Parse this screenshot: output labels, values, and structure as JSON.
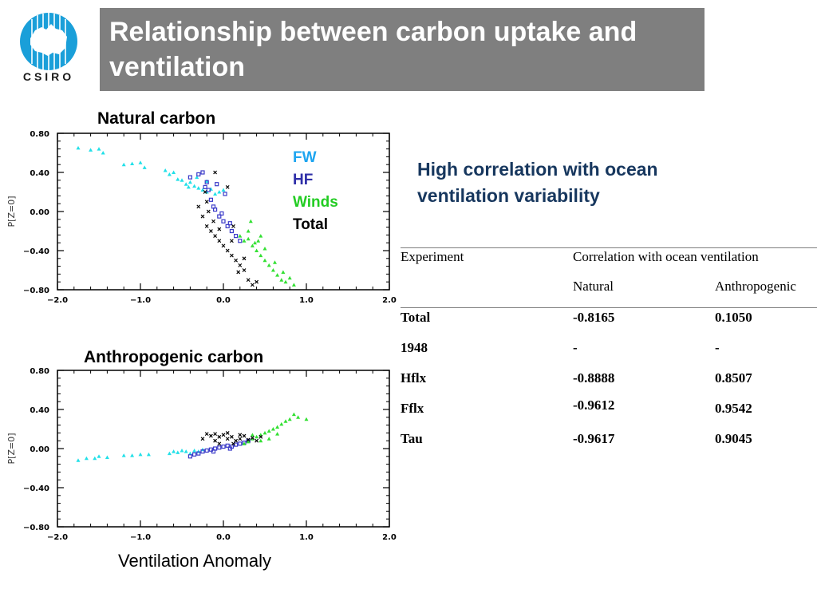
{
  "header": {
    "logo_text": "CSIRO",
    "title": "Relationship between carbon uptake and ventilation"
  },
  "legend": [
    {
      "label": "FW",
      "color": "#1ea5f0"
    },
    {
      "label": "HF",
      "color": "#2f2fa8"
    },
    {
      "label": "Winds",
      "color": "#22cc22"
    },
    {
      "label": "Total",
      "color": "#000000"
    }
  ],
  "headline": "High correlation with ocean ventilation variability",
  "x_caption": "Ventilation Anomaly",
  "chart_data": [
    {
      "type": "scatter",
      "title": "Natural carbon",
      "ylabel": "P[Z=0]",
      "xlim": [
        -2.0,
        2.0
      ],
      "ylim": [
        -0.8,
        0.8
      ],
      "xticks": [
        "−2.0",
        "−1.0",
        "0.0",
        "1.0",
        "2.0"
      ],
      "yticks": [
        "0.80",
        "0.40",
        "0.00",
        "−0.40",
        "−0.80"
      ],
      "series": [
        {
          "name": "FW",
          "color": "#22e0e8",
          "marker": "triangle",
          "points": [
            [
              -1.75,
              0.65
            ],
            [
              -1.6,
              0.63
            ],
            [
              -1.5,
              0.64
            ],
            [
              -1.45,
              0.6
            ],
            [
              -1.2,
              0.48
            ],
            [
              -1.1,
              0.49
            ],
            [
              -1.0,
              0.5
            ],
            [
              -0.95,
              0.45
            ],
            [
              -0.7,
              0.42
            ],
            [
              -0.65,
              0.38
            ],
            [
              -0.6,
              0.4
            ],
            [
              -0.55,
              0.33
            ],
            [
              -0.5,
              0.32
            ],
            [
              -0.45,
              0.28
            ],
            [
              -0.4,
              0.3
            ],
            [
              -0.35,
              0.26
            ],
            [
              -0.3,
              0.24
            ],
            [
              -0.25,
              0.22
            ],
            [
              -0.2,
              0.2
            ],
            [
              -0.15,
              0.23
            ],
            [
              -0.1,
              0.18
            ],
            [
              -0.05,
              0.2
            ],
            [
              0.0,
              0.22
            ],
            [
              -0.32,
              0.35
            ],
            [
              -0.42,
              0.25
            ],
            [
              -0.2,
              0.31
            ]
          ]
        },
        {
          "name": "HF",
          "color": "#3a3ac8",
          "marker": "square",
          "points": [
            [
              -0.4,
              0.35
            ],
            [
              -0.3,
              0.38
            ],
            [
              -0.25,
              0.4
            ],
            [
              -0.2,
              0.3
            ],
            [
              -0.18,
              0.22
            ],
            [
              -0.15,
              0.12
            ],
            [
              -0.12,
              0.05
            ],
            [
              -0.1,
              0.02
            ],
            [
              -0.05,
              -0.05
            ],
            [
              0.0,
              -0.1
            ],
            [
              0.05,
              -0.15
            ],
            [
              0.1,
              -0.2
            ],
            [
              0.15,
              -0.25
            ],
            [
              0.2,
              -0.3
            ],
            [
              -0.08,
              0.28
            ],
            [
              0.02,
              0.18
            ],
            [
              -0.02,
              -0.02
            ],
            [
              0.08,
              -0.12
            ],
            [
              -0.22,
              0.25
            ]
          ]
        },
        {
          "name": "Winds",
          "color": "#33e033",
          "marker": "triangle",
          "points": [
            [
              0.2,
              -0.25
            ],
            [
              0.25,
              -0.3
            ],
            [
              0.3,
              -0.28
            ],
            [
              0.35,
              -0.35
            ],
            [
              0.4,
              -0.4
            ],
            [
              0.45,
              -0.45
            ],
            [
              0.5,
              -0.5
            ],
            [
              0.55,
              -0.55
            ],
            [
              0.6,
              -0.6
            ],
            [
              0.65,
              -0.65
            ],
            [
              0.7,
              -0.7
            ],
            [
              0.75,
              -0.72
            ],
            [
              0.8,
              -0.68
            ],
            [
              0.85,
              -0.75
            ],
            [
              0.42,
              -0.3
            ],
            [
              0.3,
              -0.2
            ],
            [
              0.38,
              -0.32
            ],
            [
              0.5,
              -0.38
            ],
            [
              0.62,
              -0.52
            ],
            [
              0.72,
              -0.62
            ],
            [
              0.33,
              -0.1
            ],
            [
              0.45,
              -0.25
            ]
          ]
        },
        {
          "name": "Total",
          "color": "#000000",
          "marker": "cross",
          "points": [
            [
              -0.2,
              0.1
            ],
            [
              -0.25,
              -0.05
            ],
            [
              -0.2,
              -0.15
            ],
            [
              -0.15,
              -0.2
            ],
            [
              -0.1,
              -0.25
            ],
            [
              -0.05,
              -0.3
            ],
            [
              0.0,
              -0.35
            ],
            [
              0.05,
              -0.4
            ],
            [
              0.1,
              -0.45
            ],
            [
              0.15,
              -0.5
            ],
            [
              0.2,
              -0.55
            ],
            [
              0.25,
              -0.6
            ],
            [
              0.3,
              -0.7
            ],
            [
              0.35,
              -0.75
            ],
            [
              0.4,
              -0.72
            ],
            [
              -0.18,
              0.0
            ],
            [
              -0.12,
              -0.1
            ],
            [
              -0.05,
              -0.18
            ],
            [
              0.1,
              -0.3
            ],
            [
              0.25,
              -0.48
            ],
            [
              0.18,
              -0.62
            ],
            [
              -0.3,
              0.05
            ],
            [
              -0.22,
              0.2
            ],
            [
              -0.1,
              0.4
            ],
            [
              0.05,
              0.25
            ],
            [
              0.12,
              -0.15
            ]
          ]
        }
      ]
    },
    {
      "type": "scatter",
      "title": "Anthropogenic carbon",
      "ylabel": "P[Z=0]",
      "xlim": [
        -2.0,
        2.0
      ],
      "ylim": [
        -0.8,
        0.8
      ],
      "xticks": [
        "−2.0",
        "−1.0",
        "0.0",
        "1.0",
        "2.0"
      ],
      "yticks": [
        "0.80",
        "0.40",
        "0.00",
        "−0.40",
        "−0.80"
      ],
      "series": [
        {
          "name": "FW",
          "color": "#22e0e8",
          "marker": "triangle",
          "points": [
            [
              -1.75,
              -0.12
            ],
            [
              -1.65,
              -0.1
            ],
            [
              -1.55,
              -0.1
            ],
            [
              -1.5,
              -0.08
            ],
            [
              -1.4,
              -0.09
            ],
            [
              -1.2,
              -0.07
            ],
            [
              -1.1,
              -0.07
            ],
            [
              -1.0,
              -0.06
            ],
            [
              -0.9,
              -0.06
            ],
            [
              -0.65,
              -0.05
            ],
            [
              -0.6,
              -0.03
            ],
            [
              -0.55,
              -0.04
            ],
            [
              -0.5,
              -0.02
            ],
            [
              -0.45,
              -0.03
            ],
            [
              -0.4,
              -0.05
            ],
            [
              -0.35,
              -0.02
            ],
            [
              -0.3,
              -0.03
            ],
            [
              -0.25,
              -0.01
            ]
          ]
        },
        {
          "name": "HF",
          "color": "#3a3ac8",
          "marker": "square",
          "points": [
            [
              -0.4,
              -0.08
            ],
            [
              -0.35,
              -0.06
            ],
            [
              -0.3,
              -0.05
            ],
            [
              -0.25,
              -0.03
            ],
            [
              -0.2,
              -0.02
            ],
            [
              -0.15,
              -0.01
            ],
            [
              -0.1,
              0.0
            ],
            [
              -0.05,
              0.01
            ],
            [
              0.0,
              0.02
            ],
            [
              0.05,
              0.03
            ],
            [
              0.1,
              0.02
            ],
            [
              0.15,
              0.04
            ],
            [
              0.2,
              0.05
            ],
            [
              0.25,
              0.06
            ],
            [
              0.3,
              0.08
            ],
            [
              -0.12,
              -0.03
            ],
            [
              0.08,
              0.0
            ]
          ]
        },
        {
          "name": "Winds",
          "color": "#33e033",
          "marker": "triangle",
          "points": [
            [
              0.25,
              0.05
            ],
            [
              0.3,
              0.07
            ],
            [
              0.35,
              0.1
            ],
            [
              0.4,
              0.12
            ],
            [
              0.45,
              0.14
            ],
            [
              0.5,
              0.16
            ],
            [
              0.55,
              0.18
            ],
            [
              0.6,
              0.2
            ],
            [
              0.65,
              0.22
            ],
            [
              0.7,
              0.25
            ],
            [
              0.75,
              0.28
            ],
            [
              0.8,
              0.3
            ],
            [
              0.85,
              0.35
            ],
            [
              0.9,
              0.32
            ],
            [
              1.0,
              0.3
            ],
            [
              0.55,
              0.1
            ],
            [
              0.45,
              0.08
            ],
            [
              0.65,
              0.15
            ],
            [
              0.35,
              0.14
            ]
          ]
        },
        {
          "name": "Total",
          "color": "#000000",
          "marker": "cross",
          "points": [
            [
              -0.2,
              0.15
            ],
            [
              -0.15,
              0.13
            ],
            [
              -0.1,
              0.15
            ],
            [
              -0.05,
              0.12
            ],
            [
              0.0,
              0.14
            ],
            [
              0.05,
              0.1
            ],
            [
              0.1,
              0.12
            ],
            [
              0.15,
              0.08
            ],
            [
              0.2,
              0.1
            ],
            [
              0.25,
              0.13
            ],
            [
              0.3,
              0.09
            ],
            [
              0.35,
              0.11
            ],
            [
              0.4,
              0.08
            ],
            [
              -0.25,
              0.1
            ],
            [
              -0.1,
              0.08
            ],
            [
              0.05,
              0.16
            ],
            [
              0.2,
              0.14
            ],
            [
              0.45,
              0.12
            ],
            [
              -0.05,
              0.05
            ],
            [
              0.12,
              0.05
            ]
          ]
        }
      ]
    }
  ],
  "table": {
    "header": {
      "experiment": "Experiment",
      "group": "Correlation with ocean ventilation",
      "natural": "Natural",
      "anthropogenic": "Anthropogenic"
    },
    "rows": [
      {
        "experiment": "Total",
        "natural": "-0.8165",
        "anthropogenic": "0.1050"
      },
      {
        "experiment": "1948",
        "natural": "-",
        "anthropogenic": "-"
      },
      {
        "experiment": "Hflx",
        "natural": "-0.8888",
        "anthropogenic": "0.8507"
      },
      {
        "experiment": "Fflx",
        "natural": "-0.9612",
        "anthropogenic": "0.9542"
      },
      {
        "experiment": "Tau",
        "natural": "-0.9617",
        "anthropogenic": "0.9045"
      }
    ]
  }
}
